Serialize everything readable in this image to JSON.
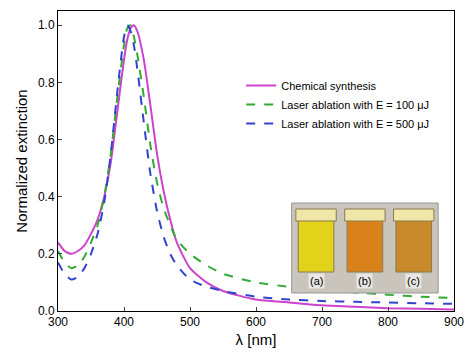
{
  "chart_data": {
    "type": "line",
    "x_label": "λ [nm]",
    "y_label": "Normalized extinction",
    "x": [
      300,
      310,
      320,
      330,
      340,
      350,
      360,
      370,
      380,
      390,
      400,
      405,
      410,
      415,
      420,
      430,
      440,
      450,
      460,
      470,
      480,
      500,
      525,
      550,
      600,
      650,
      700,
      750,
      800,
      850,
      900
    ],
    "series": [
      {
        "name": "Chemical synthesis",
        "color": "#cc44cc",
        "line_style": "solid",
        "values": [
          0.24,
          0.21,
          0.2,
          0.21,
          0.23,
          0.27,
          0.32,
          0.4,
          0.52,
          0.7,
          0.88,
          0.95,
          0.99,
          1.0,
          0.98,
          0.88,
          0.72,
          0.55,
          0.42,
          0.32,
          0.24,
          0.15,
          0.1,
          0.07,
          0.04,
          0.03,
          0.02,
          0.015,
          0.01,
          0.008,
          0.005
        ]
      },
      {
        "name": "Laser ablation with E = 100 μJ",
        "color": "#33aa33",
        "line_style": "dash",
        "values": [
          0.21,
          0.17,
          0.15,
          0.16,
          0.19,
          0.24,
          0.3,
          0.4,
          0.55,
          0.75,
          0.93,
          0.99,
          1.0,
          0.96,
          0.9,
          0.75,
          0.58,
          0.45,
          0.36,
          0.3,
          0.25,
          0.2,
          0.16,
          0.13,
          0.1,
          0.085,
          0.075,
          0.065,
          0.057,
          0.05,
          0.045
        ]
      },
      {
        "name": "Laser ablation with E = 500 μJ",
        "color": "#3344cc",
        "line_style": "dash",
        "values": [
          0.17,
          0.13,
          0.11,
          0.12,
          0.15,
          0.2,
          0.27,
          0.38,
          0.55,
          0.77,
          0.96,
          1.0,
          0.98,
          0.93,
          0.85,
          0.66,
          0.48,
          0.35,
          0.26,
          0.2,
          0.16,
          0.11,
          0.085,
          0.07,
          0.05,
          0.04,
          0.035,
          0.032,
          0.03,
          0.027,
          0.025
        ]
      }
    ],
    "xlim": [
      300,
      900
    ],
    "xticks": [
      300,
      400,
      500,
      600,
      700,
      800,
      900
    ],
    "ylim": [
      0,
      1.05
    ],
    "yticks": [
      {
        "value": 0,
        "label": "0.0"
      },
      0.2,
      0.4,
      0.6,
      0.8,
      {
        "value": 1,
        "label": "1.0"
      }
    ],
    "grid": false,
    "legend": "upper right",
    "annotations": [
      "(a)",
      "(b)",
      "(c)"
    ]
  }
}
